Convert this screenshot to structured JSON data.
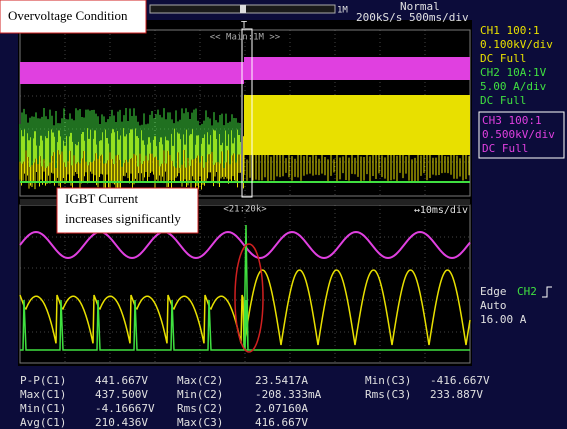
{
  "annotations": {
    "condition": "Overvoltage Condition",
    "igbt": [
      "IGBT Current",
      "increases significantly"
    ]
  },
  "header": {
    "memory": "1M",
    "mode": "Normal",
    "rate": "200kS/s 500ms/div",
    "trigger_marker": "T"
  },
  "main_window": {
    "label": "<< Main:1M >>"
  },
  "zoom_window": {
    "label": "<21:20k>",
    "timebase": "↔10ms/div"
  },
  "channels": [
    {
      "lines": [
        "CH1 100:1",
        "0.100kV/div",
        "DC  Full"
      ]
    },
    {
      "lines": [
        "CH2 10A:1V",
        "5.00 A/div",
        "DC  Full"
      ]
    },
    {
      "lines": [
        "CH3 100:1",
        "0.500kV/div",
        "DC  Full"
      ]
    }
  ],
  "trigger": {
    "type": "Edge",
    "source": "CH2",
    "mode": "Auto",
    "level": "16.00 A"
  },
  "measurements": [
    [
      [
        "P-P(C1)",
        "441.667V"
      ],
      [
        "Max(C1)",
        "437.500V"
      ],
      [
        "Min(C1)",
        "-4.16667V"
      ],
      [
        "Avg(C1)",
        "210.436V"
      ]
    ],
    [
      [
        "Max(C2)",
        "23.5417A"
      ],
      [
        "Min(C2)",
        "-208.333mA"
      ],
      [
        "Rms(C2)",
        "2.07160A"
      ],
      [
        "Max(C3)",
        "416.667V"
      ]
    ],
    [
      [
        "Min(C3)",
        "-416.667V"
      ],
      [
        "Rms(C3)",
        "233.887V"
      ]
    ]
  ]
}
